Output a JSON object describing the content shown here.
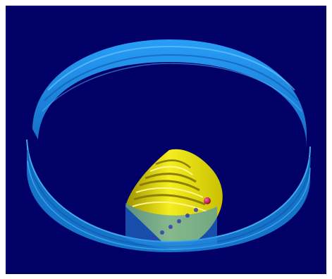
{
  "scene": {
    "background_color": "#000066",
    "ring_color": "#1a8fe0",
    "ring_highlight_color": "#4fc3ff",
    "cone_color": "#e8e000",
    "cone_shadow_color": "#8a7f00",
    "marker_color": "#cc0055",
    "trail_color": "#3a3ab0"
  }
}
